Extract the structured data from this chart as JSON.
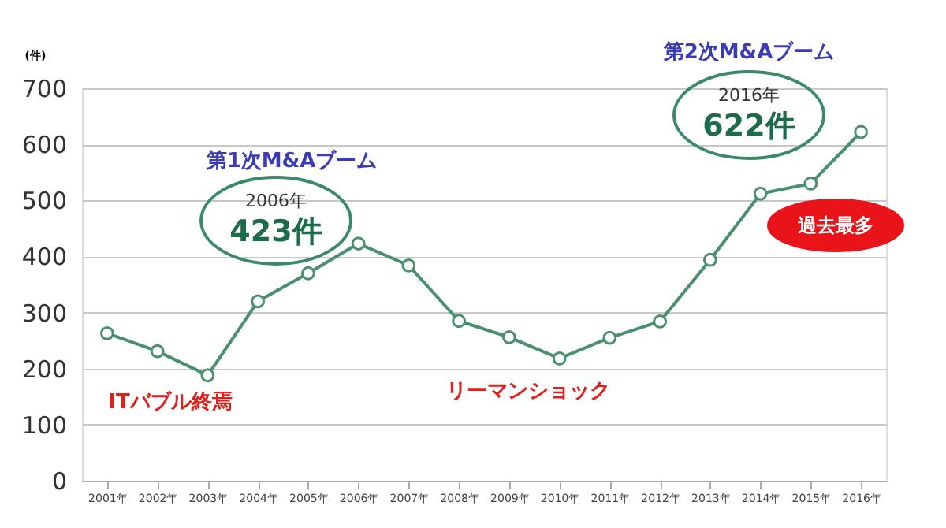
{
  "chart_data": {
    "type": "line",
    "ylabel": "(件)",
    "categories": [
      "2001年",
      "2002年",
      "2003年",
      "2004年",
      "2005年",
      "2006年",
      "2007年",
      "2008年",
      "2009年",
      "2010年",
      "2011年",
      "2012年",
      "2013年",
      "2014年",
      "2015年",
      "2016年"
    ],
    "series": [
      {
        "color": "#4a8f6e",
        "values": [
          263,
          231,
          188,
          320,
          370,
          423,
          384,
          285,
          256,
          218,
          255,
          284,
          394,
          512,
          530,
          622
        ]
      }
    ],
    "ylim": [
      0,
      700
    ],
    "yticks": [
      0,
      100,
      200,
      300,
      400,
      500,
      600,
      700
    ],
    "grid": "y",
    "marker": "circle",
    "line_style": "solid",
    "annotations": [
      "第1次M&Aブーム",
      "2006年\n423件",
      "第2次M&Aブーム",
      "2016年\n622件",
      "過去最多",
      "ITバブル終焉",
      "リーマンショック"
    ]
  }
}
